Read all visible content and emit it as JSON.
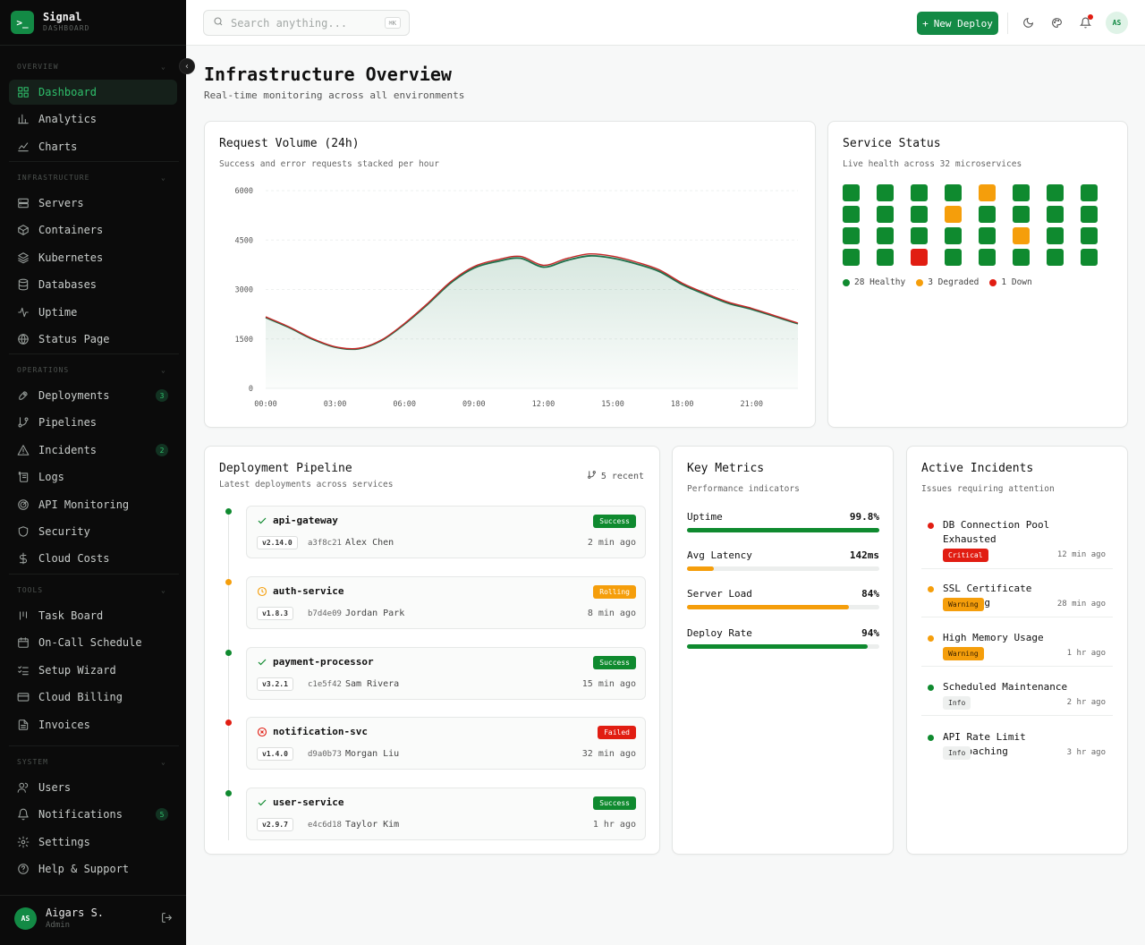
{
  "brand": {
    "logo": ">_",
    "name": "Signal",
    "sub": "DASHBOARD"
  },
  "sidebar": {
    "sections": [
      {
        "title": "OVERVIEW"
      },
      {
        "title": "INFRASTRUCTURE"
      },
      {
        "title": "OPERATIONS"
      },
      {
        "title": "TOOLS"
      },
      {
        "title": "SYSTEM"
      }
    ],
    "items": [
      {
        "label": "Dashboard",
        "icon": "grid-icon"
      },
      {
        "label": "Analytics",
        "icon": "bar-chart-icon"
      },
      {
        "label": "Charts",
        "icon": "line-chart-icon"
      },
      {
        "label": "Servers",
        "icon": "server-icon"
      },
      {
        "label": "Containers",
        "icon": "box-icon"
      },
      {
        "label": "Kubernetes",
        "icon": "layers-icon"
      },
      {
        "label": "Databases",
        "icon": "database-icon"
      },
      {
        "label": "Uptime",
        "icon": "activity-icon"
      },
      {
        "label": "Status Page",
        "icon": "globe-icon"
      },
      {
        "label": "Deployments",
        "icon": "rocket-icon",
        "badge": "3"
      },
      {
        "label": "Pipelines",
        "icon": "git-branch-icon"
      },
      {
        "label": "Incidents",
        "icon": "alert-triangle-icon",
        "badge": "2"
      },
      {
        "label": "Logs",
        "icon": "scroll-icon"
      },
      {
        "label": "API Monitoring",
        "icon": "radar-icon"
      },
      {
        "label": "Security",
        "icon": "shield-icon"
      },
      {
        "label": "Cloud Costs",
        "icon": "dollar-icon"
      },
      {
        "label": "Task Board",
        "icon": "kanban-icon"
      },
      {
        "label": "On-Call Schedule",
        "icon": "calendar-icon"
      },
      {
        "label": "Setup Wizard",
        "icon": "list-checks-icon"
      },
      {
        "label": "Cloud Billing",
        "icon": "credit-card-icon"
      },
      {
        "label": "Invoices",
        "icon": "file-text-icon"
      },
      {
        "label": "Users",
        "icon": "users-icon"
      },
      {
        "label": "Notifications",
        "icon": "bell-icon",
        "badge": "5"
      },
      {
        "label": "Settings",
        "icon": "gear-icon"
      },
      {
        "label": "Help & Support",
        "icon": "help-circle-icon"
      }
    ]
  },
  "user": {
    "initials": "AS",
    "name": "Aigars S.",
    "role": "Admin"
  },
  "topbar": {
    "search_placeholder": "Search anything...",
    "shortcut": "⌘K",
    "deploy_label": "New Deploy",
    "avatar": "AS"
  },
  "page": {
    "title": "Infrastructure Overview",
    "subtitle": "Real-time monitoring across all environments"
  },
  "colors": {
    "accent": "#138a45",
    "healthy": "#0f8a2f",
    "degraded": "#f59e0b",
    "down": "#e11d12",
    "success_line": "#1f6f4a",
    "error_line": "#c62828"
  },
  "request_card": {
    "title": "Request Volume (24h)",
    "subtitle": "Success and error requests stacked per hour"
  },
  "chart_data": {
    "type": "area",
    "title": "Request Volume (24h)",
    "x": [
      "00:00",
      "01:00",
      "02:00",
      "03:00",
      "04:00",
      "05:00",
      "06:00",
      "07:00",
      "08:00",
      "09:00",
      "10:00",
      "11:00",
      "12:00",
      "13:00",
      "14:00",
      "15:00",
      "16:00",
      "17:00",
      "18:00",
      "19:00",
      "20:00",
      "21:00",
      "22:00",
      "23:00"
    ],
    "xticks": [
      "00:00",
      "03:00",
      "06:00",
      "09:00",
      "12:00",
      "15:00",
      "18:00",
      "21:00"
    ],
    "yticks": [
      0,
      1500,
      3000,
      4500,
      6000
    ],
    "ylim": [
      0,
      6000
    ],
    "series": [
      {
        "name": "Success",
        "values": [
          2150,
          1850,
          1500,
          1250,
          1200,
          1450,
          1950,
          2550,
          3200,
          3650,
          3850,
          3950,
          3680,
          3880,
          4020,
          3950,
          3780,
          3550,
          3150,
          2850,
          2580,
          2400,
          2180,
          1960
        ]
      },
      {
        "name": "Error",
        "values": [
          20,
          20,
          18,
          15,
          15,
          18,
          22,
          30,
          38,
          45,
          50,
          55,
          55,
          58,
          60,
          58,
          55,
          50,
          45,
          40,
          35,
          30,
          25,
          22
        ]
      }
    ],
    "grid": true,
    "legend": "none"
  },
  "service_card": {
    "title": "Service Status",
    "subtitle": "Live health across 32 microservices",
    "statuses": [
      "healthy",
      "healthy",
      "healthy",
      "healthy",
      "degraded",
      "healthy",
      "healthy",
      "healthy",
      "healthy",
      "healthy",
      "healthy",
      "degraded",
      "healthy",
      "healthy",
      "healthy",
      "healthy",
      "healthy",
      "healthy",
      "healthy",
      "healthy",
      "healthy",
      "degraded",
      "healthy",
      "healthy",
      "healthy",
      "healthy",
      "down",
      "healthy",
      "healthy",
      "healthy",
      "healthy",
      "healthy"
    ],
    "legend": {
      "healthy": "28 Healthy",
      "degraded": "3 Degraded",
      "down": "1 Down"
    }
  },
  "pipeline_card": {
    "title": "Deployment Pipeline",
    "subtitle": "Latest deployments across services",
    "recent": "5 recent",
    "items": [
      {
        "name": "api-gateway",
        "version": "v2.14.0",
        "hash": "a3f8c21",
        "author": "Alex Chen",
        "status": "Success",
        "time": "2 min ago",
        "state": "success"
      },
      {
        "name": "auth-service",
        "version": "v1.8.3",
        "hash": "b7d4e09",
        "author": "Jordan Park",
        "status": "Rolling",
        "time": "8 min ago",
        "state": "rolling"
      },
      {
        "name": "payment-processor",
        "version": "v3.2.1",
        "hash": "c1e5f42",
        "author": "Sam Rivera",
        "status": "Success",
        "time": "15 min ago",
        "state": "success"
      },
      {
        "name": "notification-svc",
        "version": "v1.4.0",
        "hash": "d9a0b73",
        "author": "Morgan Liu",
        "status": "Failed",
        "time": "32 min ago",
        "state": "failed"
      },
      {
        "name": "user-service",
        "version": "v2.9.7",
        "hash": "e4c6d18",
        "author": "Taylor Kim",
        "status": "Success",
        "time": "1 hr ago",
        "state": "success"
      }
    ]
  },
  "metrics_card": {
    "title": "Key Metrics",
    "subtitle": "Performance indicators",
    "items": [
      {
        "label": "Uptime",
        "value": "99.8%",
        "fill": 0.998,
        "color": "#0f8a2f"
      },
      {
        "label": "Avg Latency",
        "value": "142ms",
        "fill": 0.14,
        "color": "#f59e0b"
      },
      {
        "label": "Server Load",
        "value": "84%",
        "fill": 0.84,
        "color": "#f59e0b"
      },
      {
        "label": "Deploy Rate",
        "value": "94%",
        "fill": 0.94,
        "color": "#0f8a2f"
      }
    ]
  },
  "incidents_card": {
    "title": "Active Incidents",
    "subtitle": "Issues requiring attention",
    "items": [
      {
        "title": "DB Connection Pool Exhausted",
        "severity": "Critical",
        "time": "12 min ago",
        "level": "critical"
      },
      {
        "title": "SSL Certificate Expiring",
        "severity": "Warning",
        "time": "28 min ago",
        "level": "warning"
      },
      {
        "title": "High Memory Usage",
        "severity": "Warning",
        "time": "1 hr ago",
        "level": "warning"
      },
      {
        "title": "Scheduled Maintenance",
        "severity": "Info",
        "time": "2 hr ago",
        "level": "info"
      },
      {
        "title": "API Rate Limit Approaching",
        "severity": "Info",
        "time": "3 hr ago",
        "level": "info"
      }
    ]
  }
}
